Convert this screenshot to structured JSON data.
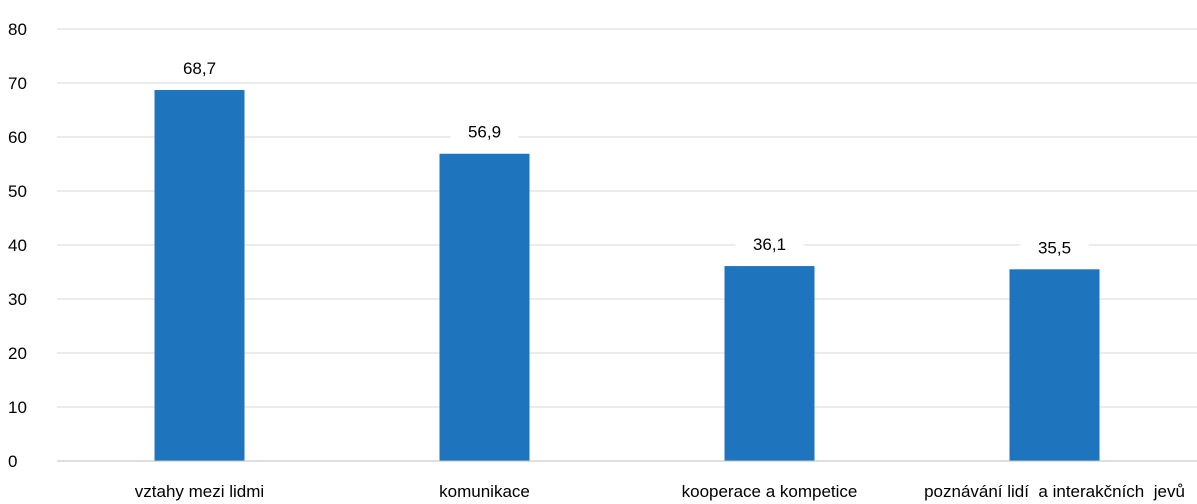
{
  "chart_data": {
    "type": "bar",
    "categories": [
      "vztahy mezi lidmi",
      "komunikace",
      "kooperace a kompetice",
      "poznávání lidí  a interakčních  jevů"
    ],
    "values": [
      68.7,
      56.9,
      36.1,
      35.5
    ],
    "data_labels": [
      "68,7",
      "56,9",
      "36,1",
      "35,5"
    ],
    "y_ticks": [
      "0",
      "10",
      "20",
      "30",
      "40",
      "50",
      "60",
      "70",
      "80"
    ],
    "ylim": [
      0,
      80
    ],
    "grid": true,
    "legend": "none",
    "bar_color": "#1f74be"
  }
}
